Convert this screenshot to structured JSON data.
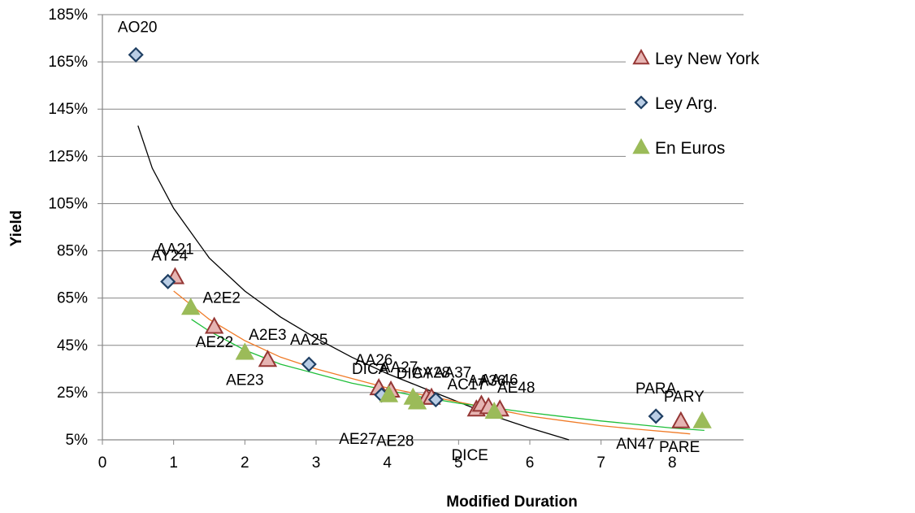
{
  "chart_data": {
    "type": "scatter",
    "xlabel": "Modified Duration",
    "ylabel": "Yield",
    "xlim": [
      0,
      9
    ],
    "ylim": [
      5,
      185
    ],
    "x_ticks": [
      0,
      1,
      2,
      3,
      4,
      5,
      6,
      7,
      8
    ],
    "y_ticks": [
      5,
      25,
      45,
      65,
      85,
      105,
      125,
      145,
      165,
      185
    ],
    "y_tick_labels": [
      "5%",
      "25%",
      "45%",
      "65%",
      "85%",
      "105%",
      "125%",
      "145%",
      "165%",
      "185%"
    ],
    "grid": "horizontal",
    "legend_position": "top-right",
    "series": [
      {
        "name": "Ley New York",
        "marker": "triangle",
        "color": "#e6b4b2",
        "stroke": "#953735",
        "points": [
          {
            "x": 1.02,
            "y": 74,
            "label": "AA21"
          },
          {
            "x": 1.57,
            "y": 53,
            "label": ""
          },
          {
            "x": 2.32,
            "y": 39,
            "label": "A2E3"
          },
          {
            "x": 3.88,
            "y": 27,
            "label": "AA26"
          },
          {
            "x": 4.05,
            "y": 26,
            "label": "AA27"
          },
          {
            "x": 4.55,
            "y": 23,
            "label": "AA28"
          },
          {
            "x": 4.62,
            "y": 23,
            "label": "AA37"
          },
          {
            "x": 5.25,
            "y": 18,
            "label": "AC17"
          },
          {
            "x": 5.32,
            "y": 20,
            "label": "AA46"
          },
          {
            "x": 5.42,
            "y": 19,
            "label": "AA36"
          },
          {
            "x": 5.58,
            "y": 18,
            "label": "AE48"
          },
          {
            "x": 8.12,
            "y": 13,
            "label": "PARY"
          }
        ]
      },
      {
        "name": "Ley Arg.",
        "marker": "diamond",
        "color": "#b9cde5",
        "stroke": "#1f3f63",
        "points": [
          {
            "x": 0.47,
            "y": 168,
            "label": "AO20"
          },
          {
            "x": 0.92,
            "y": 72,
            "label": "AY24"
          },
          {
            "x": 2.9,
            "y": 37,
            "label": "AA25"
          },
          {
            "x": 3.92,
            "y": 24,
            "label": "DICA"
          },
          {
            "x": 4.68,
            "y": 22,
            "label": "DICY"
          },
          {
            "x": 7.77,
            "y": 15,
            "label": "PARA"
          }
        ]
      },
      {
        "name": "En Euros",
        "marker": "triangle",
        "color": "#9bbb59",
        "stroke": "#9bbb59",
        "points": [
          {
            "x": 1.24,
            "y": 61,
            "label": "A2E2"
          },
          {
            "x": 2.0,
            "y": 42,
            "label": "AE23"
          },
          {
            "x": 4.02,
            "y": 24,
            "label": "AE27"
          },
          {
            "x": 4.36,
            "y": 23,
            "label": "AE28"
          },
          {
            "x": 4.42,
            "y": 21,
            "label": ""
          },
          {
            "x": 5.5,
            "y": 17,
            "label": "DICE"
          },
          {
            "x": 8.42,
            "y": 13,
            "label": "PARE"
          }
        ]
      }
    ],
    "extra_labels": [
      "AE22",
      "AN47"
    ],
    "trendlines": [
      {
        "color": "#000000",
        "x_range": [
          0.5,
          6.55
        ],
        "points": [
          [
            0.5,
            138
          ],
          [
            0.7,
            120
          ],
          [
            1.0,
            103
          ],
          [
            1.5,
            82
          ],
          [
            2.0,
            68
          ],
          [
            2.5,
            57
          ],
          [
            3.0,
            48
          ],
          [
            3.5,
            40
          ],
          [
            4.0,
            33
          ],
          [
            4.5,
            27
          ],
          [
            5.0,
            21
          ],
          [
            5.5,
            15
          ],
          [
            6.0,
            10
          ],
          [
            6.55,
            5
          ]
        ]
      },
      {
        "color": "#f07c29",
        "x_range": [
          1.0,
          8.25
        ],
        "points": [
          [
            1.0,
            68
          ],
          [
            1.5,
            56
          ],
          [
            2.0,
            47
          ],
          [
            2.5,
            40
          ],
          [
            3.0,
            35
          ],
          [
            3.5,
            31
          ],
          [
            4.0,
            27
          ],
          [
            4.5,
            24
          ],
          [
            5.0,
            21
          ],
          [
            5.5,
            18
          ],
          [
            6.0,
            15
          ],
          [
            6.5,
            13
          ],
          [
            7.0,
            11
          ],
          [
            7.5,
            9.5
          ],
          [
            8.0,
            8.2
          ],
          [
            8.25,
            7.5
          ]
        ]
      },
      {
        "color": "#1fbf3a",
        "x_range": [
          1.25,
          8.45
        ],
        "points": [
          [
            1.25,
            56
          ],
          [
            1.5,
            51
          ],
          [
            2.0,
            43
          ],
          [
            2.5,
            37
          ],
          [
            3.0,
            33
          ],
          [
            3.5,
            29
          ],
          [
            4.0,
            26
          ],
          [
            4.5,
            23
          ],
          [
            5.0,
            20.5
          ],
          [
            5.5,
            18.5
          ],
          [
            6.0,
            16.5
          ],
          [
            6.5,
            14.7
          ],
          [
            7.0,
            13
          ],
          [
            7.5,
            11.5
          ],
          [
            8.0,
            10
          ],
          [
            8.45,
            9
          ]
        ]
      }
    ]
  }
}
